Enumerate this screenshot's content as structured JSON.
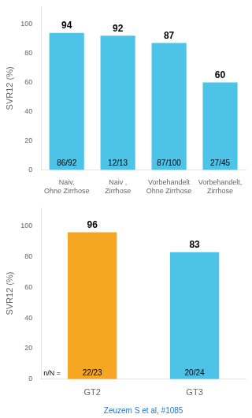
{
  "chart_data": [
    {
      "type": "bar",
      "categories": [
        "Naiv,\nOhne Zirrhose",
        "Naiv ,\nZirrhose",
        "Vorbehandelt\nOhne Zirrhose",
        "Vorbehandelt,\nZirrhose"
      ],
      "values": [
        94,
        92,
        87,
        60
      ],
      "bar_labels": [
        "86/92",
        "12/13",
        "87/100",
        "27/45"
      ],
      "color": "#4DC3E8",
      "ylabel": "SVR12 (%)",
      "ylim": [
        0,
        112
      ],
      "yticks": [
        0,
        20,
        40,
        60,
        80,
        100
      ],
      "grid": false,
      "data_labels": true
    },
    {
      "type": "bar",
      "categories": [
        "GT2",
        "GT3"
      ],
      "values": [
        96,
        83
      ],
      "bar_labels": [
        "22/23",
        "20/24"
      ],
      "colors": [
        "#F5A623",
        "#4DC3E8"
      ],
      "ylabel": "SVR12 (%)",
      "ylim": [
        0,
        112
      ],
      "yticks": [
        0,
        20,
        40,
        60,
        80,
        100
      ],
      "grid": false,
      "data_labels": true,
      "annotations": [
        "n/N ="
      ],
      "source": "Zeuzem S et al, #1085",
      "source_color": "#2277CC"
    }
  ]
}
